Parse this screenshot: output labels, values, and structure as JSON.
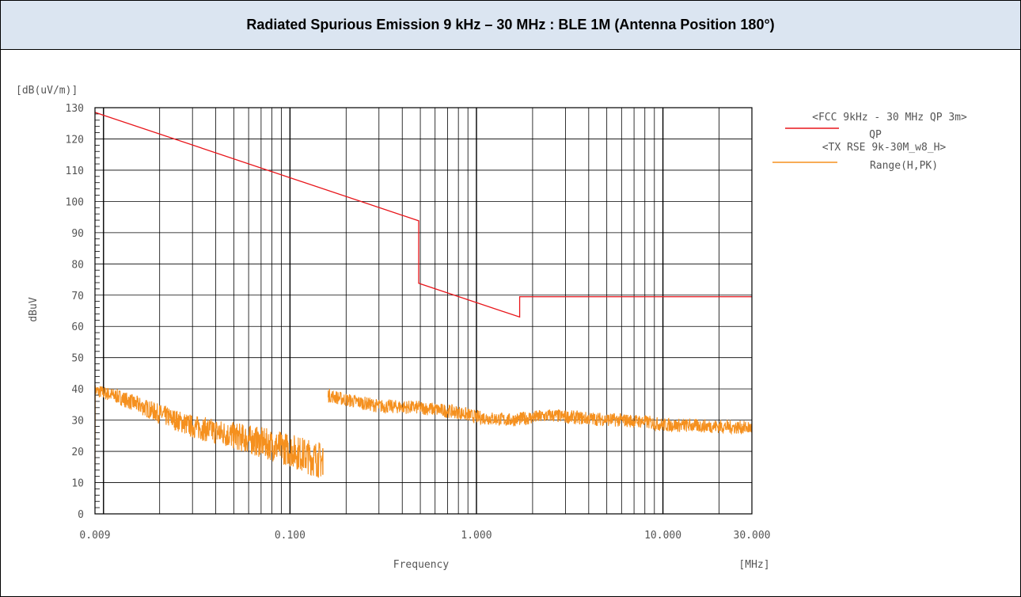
{
  "header": {
    "title": "Radiated Spurious Emission 9 kHz – 30 MHz : BLE 1M (Antenna Position 180°)"
  },
  "chart_data": {
    "type": "line",
    "x_scale": "log",
    "xlim": [
      0.009,
      30.0
    ],
    "ylim": [
      0,
      130
    ],
    "grid": true,
    "unit_label": "[dB(uV/m)]",
    "ylabel": "dBuV",
    "xlabel": "Frequency",
    "x_unit_label": "[MHz]",
    "y_ticks": [
      "0",
      "10",
      "20",
      "30",
      "40",
      "50",
      "60",
      "70",
      "80",
      "90",
      "100",
      "110",
      "120",
      "130"
    ],
    "x_ticks": [
      {
        "value": 0.009,
        "label": "0.009"
      },
      {
        "value": 0.1,
        "label": "0.100"
      },
      {
        "value": 1.0,
        "label": "1.000"
      },
      {
        "value": 10.0,
        "label": "10.000"
      },
      {
        "value": 30.0,
        "label": "30.000"
      }
    ],
    "legend_position": "right",
    "series": [
      {
        "name": "QP",
        "legend_header": "<FCC 9kHz - 30 MHz QP 3m>",
        "color": "#e8161b",
        "x": [
          0.009,
          0.49,
          0.49,
          1.705,
          1.705,
          30.0
        ],
        "y": [
          128.5,
          93.8,
          73.8,
          63.0,
          69.5,
          69.5
        ]
      },
      {
        "name": "Range(H,PK)",
        "legend_header": "<TX RSE 9k-30M_w8_H>",
        "color": "#f5901e",
        "segments": [
          {
            "x": [
              0.009,
              0.012,
              0.02,
              0.03,
              0.05,
              0.08,
              0.1,
              0.13,
              0.15
            ],
            "y": [
              39.5,
              37.5,
              32,
              28,
              25,
              22,
              20.5,
              18,
              17
            ]
          },
          {
            "x": [
              0.15,
              0.15
            ],
            "y": [
              12.5,
              21
            ]
          },
          {
            "x": [
              0.16,
              0.2,
              0.3,
              0.5,
              0.8,
              1.0,
              1.5,
              2.5,
              4,
              6,
              8,
              10,
              20,
              30.0
            ],
            "y": [
              38,
              36.5,
              34.5,
              34,
              32.5,
              31,
              30,
              31.5,
              30.5,
              30,
              29.5,
              28.5,
              28,
              27.5
            ]
          }
        ]
      }
    ]
  }
}
